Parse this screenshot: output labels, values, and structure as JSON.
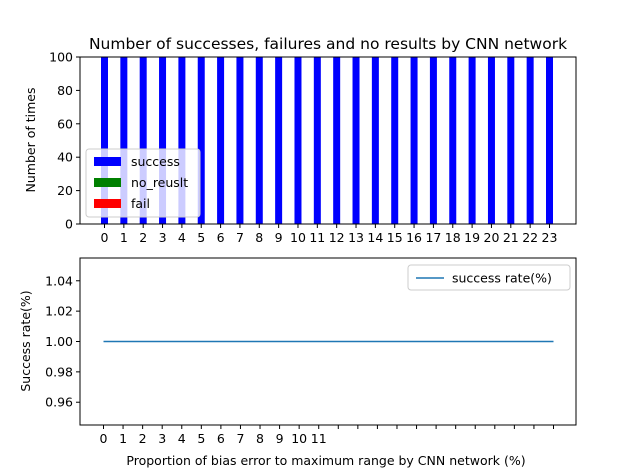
{
  "chart_data": [
    {
      "type": "bar",
      "title": "Number of successes, failures and no results by CNN network",
      "xlabel": "",
      "ylabel": "Number of times",
      "categories": [
        "0",
        "1",
        "2",
        "3",
        "4",
        "5",
        "6",
        "7",
        "8",
        "9",
        "10",
        "11",
        "12",
        "13",
        "14",
        "15",
        "16",
        "17",
        "18",
        "19",
        "20",
        "21",
        "22",
        "23"
      ],
      "series": [
        {
          "name": "success",
          "color": "#0000ff",
          "values": [
            100,
            100,
            100,
            100,
            100,
            100,
            100,
            100,
            100,
            100,
            100,
            100,
            100,
            100,
            100,
            100,
            100,
            100,
            100,
            100,
            100,
            100,
            100,
            100
          ]
        },
        {
          "name": "no_reuslt",
          "color": "#008000",
          "values": [
            0,
            0,
            0,
            0,
            0,
            0,
            0,
            0,
            0,
            0,
            0,
            0,
            0,
            0,
            0,
            0,
            0,
            0,
            0,
            0,
            0,
            0,
            0,
            0
          ]
        },
        {
          "name": "fail",
          "color": "#ff0000",
          "values": [
            0,
            0,
            0,
            0,
            0,
            0,
            0,
            0,
            0,
            0,
            0,
            0,
            0,
            0,
            0,
            0,
            0,
            0,
            0,
            0,
            0,
            0,
            0,
            0
          ]
        }
      ],
      "ylim": [
        0,
        100
      ],
      "yticks": [
        "0",
        "20",
        "40",
        "60",
        "80",
        "100"
      ],
      "legend_position": "lower-left",
      "grid": false
    },
    {
      "type": "line",
      "title": "",
      "xlabel": "Proportion of bias error to maximum range by CNN network (%)",
      "ylabel": "Success rate(%)",
      "x": [
        0,
        1,
        2,
        3,
        4,
        5,
        6,
        7,
        8,
        9,
        10,
        11,
        12,
        13,
        14,
        15,
        16,
        17,
        18,
        19,
        20,
        21,
        22,
        23
      ],
      "xticklabels": [
        "0",
        "1",
        "2",
        "3",
        "4",
        "5",
        "6",
        "7",
        "8",
        "9",
        "10",
        "11",
        "",
        "",
        "",
        "",
        "",
        "",
        "",
        "",
        "",
        "",
        "",
        ""
      ],
      "series": [
        {
          "name": "success rate(%)",
          "color": "#1f77b4",
          "values": [
            1,
            1,
            1,
            1,
            1,
            1,
            1,
            1,
            1,
            1,
            1,
            1,
            1,
            1,
            1,
            1,
            1,
            1,
            1,
            1,
            1,
            1,
            1,
            1
          ]
        }
      ],
      "ylim": [
        0.945,
        1.055
      ],
      "yticks": [
        "0.96",
        "0.98",
        "1.00",
        "1.02",
        "1.04"
      ],
      "legend_position": "upper-right",
      "grid": false
    }
  ]
}
